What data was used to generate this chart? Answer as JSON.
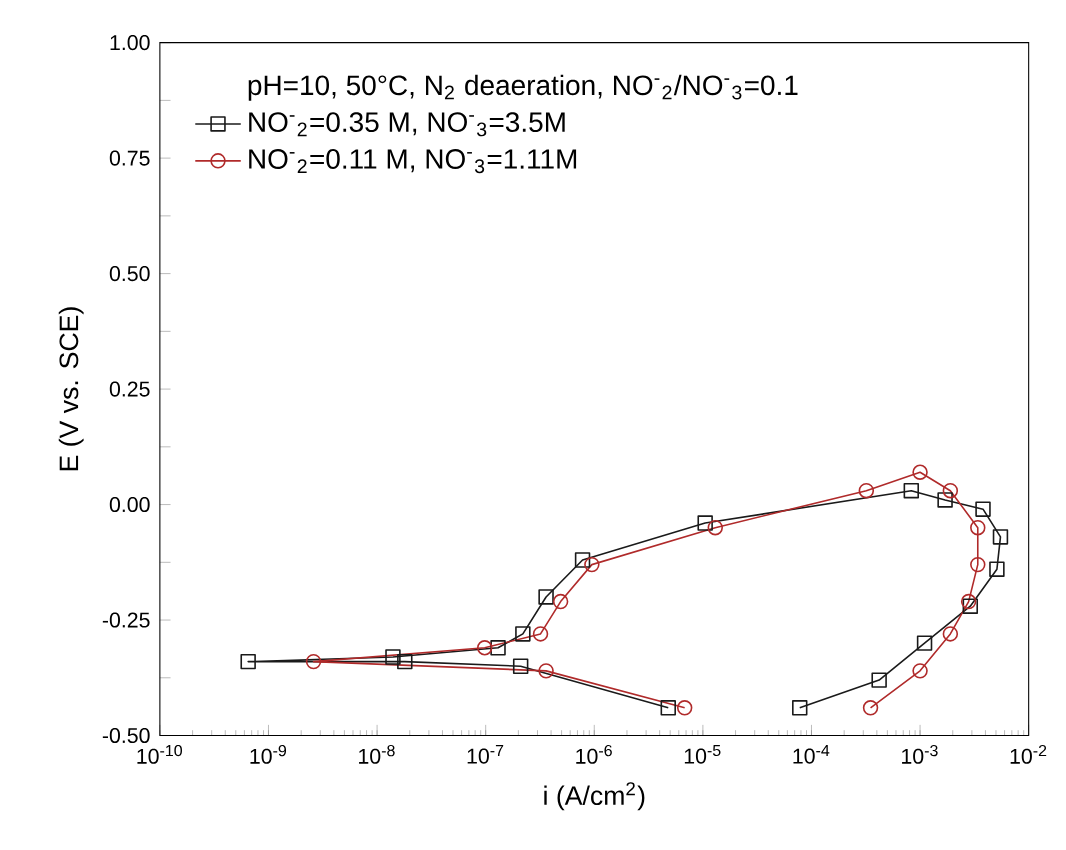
{
  "chart_data": {
    "type": "line",
    "xlabel": "i (A/cm$^{2}$)",
    "ylabel": "E (V vs. SCE)",
    "legend_title": "pH=10, 50°C, N$_{2}$ deaeration, NO$^{-}$$_{2}$/NO$^{-}$$_{3}$=0.1",
    "log": "x",
    "legend": "top left",
    "grid": false,
    "line_style": "solid",
    "xlim": [
      1e-10,
      0.01
    ],
    "ylim": [
      -0.5,
      1.0
    ],
    "xticks": [
      {
        "value": 1e-10,
        "label": "10$^{-10}$"
      },
      {
        "value": 1e-09,
        "label": "10$^{-9}$"
      },
      {
        "value": 1e-08,
        "label": "10$^{-8}$"
      },
      {
        "value": 1e-07,
        "label": "10$^{-7}$"
      },
      {
        "value": 1e-06,
        "label": "10$^{-6}$"
      },
      {
        "value": 1e-05,
        "label": "10$^{-5}$"
      },
      {
        "value": 0.0001,
        "label": "10$^{-4}$"
      },
      {
        "value": 0.001,
        "label": "10$^{-3}$"
      },
      {
        "value": 0.01,
        "label": "10$^{-2}$"
      }
    ],
    "yticks": [
      {
        "value": -0.5,
        "label": "-0.50"
      },
      {
        "value": -0.375,
        "label": null
      },
      {
        "value": -0.25,
        "label": "-0.25"
      },
      {
        "value": -0.125,
        "label": null
      },
      {
        "value": 0,
        "label": "0.00"
      },
      {
        "value": 0.125,
        "label": null
      },
      {
        "value": 0.25,
        "label": "0.25"
      },
      {
        "value": 0.375,
        "label": null
      },
      {
        "value": 0.5,
        "label": "0.50"
      },
      {
        "value": 0.625,
        "label": null
      },
      {
        "value": 0.75,
        "label": "0.75"
      },
      {
        "value": 0.875,
        "label": null
      },
      {
        "value": 1.0,
        "label": "1.00"
      }
    ],
    "series": [
      {
        "name": "NO$^{-}$$_{2}$=0.35 M, NO$^{-}$$_{3}$=3.5M",
        "color": "#1a1a1a",
        "marker": "square",
        "x": [
          4.8e-06,
          2.1e-07,
          1.8e-08,
          6.5e-10,
          1.4e-08,
          1.3e-07,
          2.2e-07,
          3.6e-07,
          7.8e-07,
          1.05e-05,
          0.00083,
          0.0017,
          0.0038,
          0.0055,
          0.0051,
          0.0029,
          0.0011,
          0.00042,
          7.8e-05
        ],
        "values": [
          -0.44,
          -0.35,
          -0.34,
          -0.34,
          -0.33,
          -0.31,
          -0.28,
          -0.2,
          -0.12,
          -0.04,
          0.03,
          0.01,
          -0.01,
          -0.07,
          -0.14,
          -0.22,
          -0.3,
          -0.38,
          -0.44
        ]
      },
      {
        "name": "NO$^{-}$$_{2}$=0.11 M, NO$^{-}$$_{3}$=1.11M",
        "color": "#b02a2a",
        "marker": "circle",
        "x": [
          6.8e-06,
          3.6e-07,
          2.6e-09,
          9.8e-08,
          3.2e-07,
          4.9e-07,
          9.5e-07,
          1.3e-05,
          0.00032,
          0.001,
          0.0019,
          0.0034,
          0.0034,
          0.0028,
          0.0019,
          0.001,
          0.00035
        ],
        "values": [
          -0.44,
          -0.36,
          -0.34,
          -0.31,
          -0.28,
          -0.21,
          -0.13,
          -0.05,
          0.03,
          0.07,
          0.03,
          -0.05,
          -0.13,
          -0.21,
          -0.28,
          -0.36,
          -0.44
        ]
      }
    ]
  }
}
